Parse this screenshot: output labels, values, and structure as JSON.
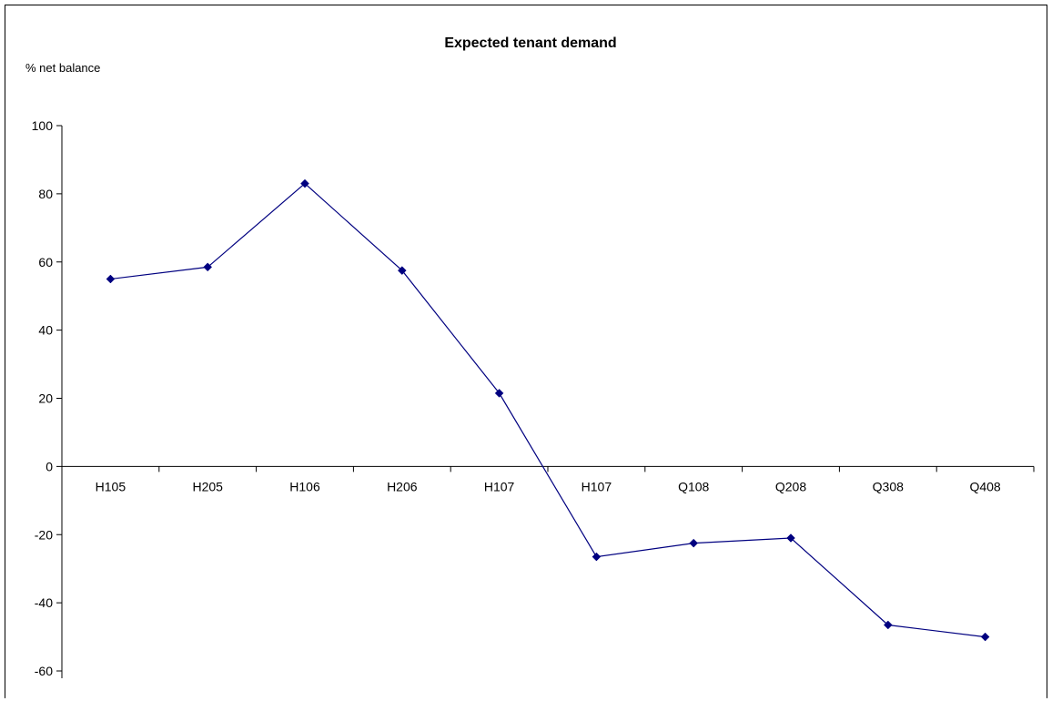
{
  "chart_data": {
    "type": "line",
    "title": "Expected tenant demand",
    "ylabel": "% net balance",
    "xlabel": "",
    "categories": [
      "H105",
      "H205",
      "H106",
      "H206",
      "H107",
      "H107",
      "Q108",
      "Q208",
      "Q308",
      "Q408"
    ],
    "series": [
      {
        "values": [
          55,
          58.5,
          83,
          57.5,
          21.5,
          -26.5,
          -22.5,
          -21,
          -46.5,
          -50
        ],
        "color": "#000080"
      }
    ],
    "ylim": [
      -60,
      100
    ],
    "yticks": [
      -60,
      -40,
      -20,
      0,
      20,
      40,
      60,
      80,
      100
    ],
    "grid": false,
    "legend": "none",
    "marker": "diamond"
  }
}
